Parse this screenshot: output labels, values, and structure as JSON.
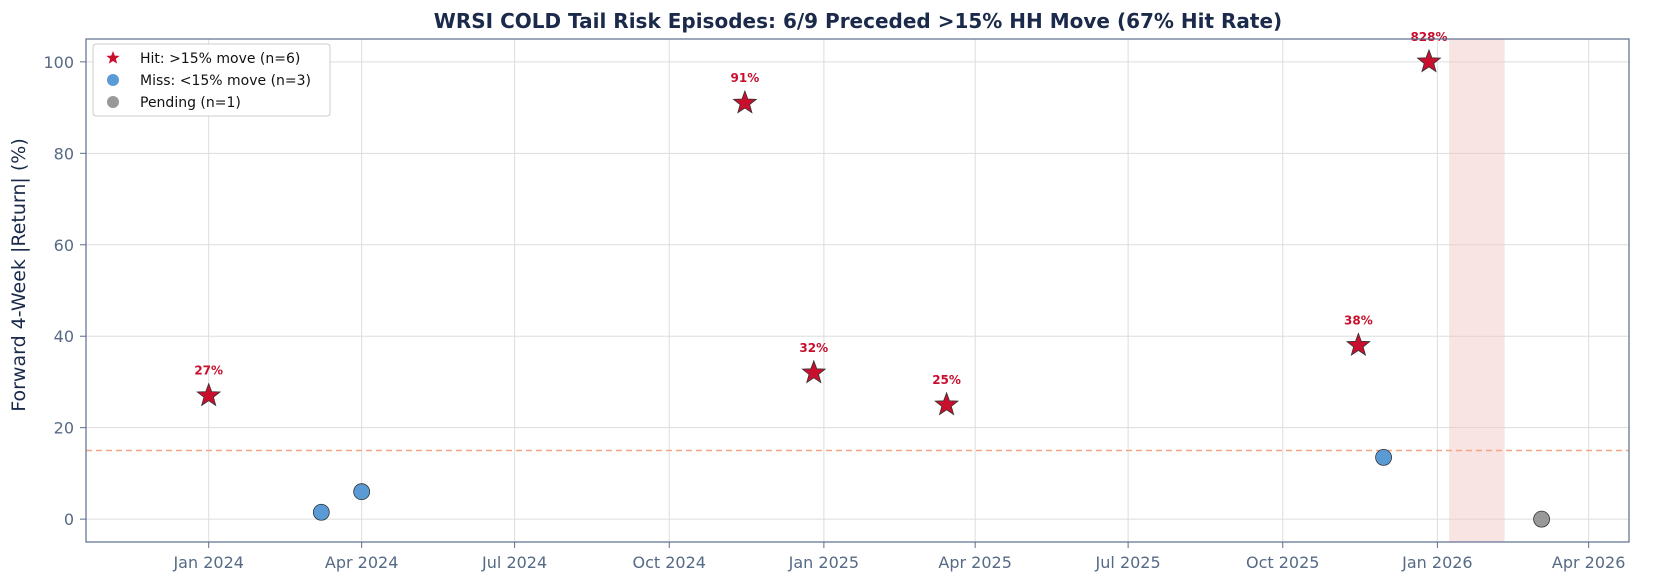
{
  "chart_data": {
    "type": "scatter",
    "title": "WRSI COLD Tail Risk Episodes: 6/9 Preceded >15% HH Move (67% Hit Rate)",
    "xlabel": "",
    "ylabel": "Forward 4-Week |Return| (%)",
    "x_axis": {
      "type": "date",
      "range": [
        "2023-10-20",
        "2026-04-25"
      ],
      "ticks": [
        {
          "date": "2024-01-01",
          "label": "Jan 2024"
        },
        {
          "date": "2024-04-01",
          "label": "Apr 2024"
        },
        {
          "date": "2024-07-01",
          "label": "Jul 2024"
        },
        {
          "date": "2024-10-01",
          "label": "Oct 2024"
        },
        {
          "date": "2025-01-01",
          "label": "Jan 2025"
        },
        {
          "date": "2025-04-01",
          "label": "Apr 2025"
        },
        {
          "date": "2025-07-01",
          "label": "Jul 2025"
        },
        {
          "date": "2025-10-01",
          "label": "Oct 2025"
        },
        {
          "date": "2026-01-01",
          "label": "Jan 2026"
        },
        {
          "date": "2026-04-01",
          "label": "Apr 2026"
        }
      ]
    },
    "y_axis": {
      "range": [
        -5,
        105
      ],
      "ticks": [
        0,
        20,
        40,
        60,
        80,
        100
      ]
    },
    "grid": true,
    "legend_position": "top-left",
    "threshold": {
      "y": 15,
      "color": "#f4a582",
      "style": "dashed"
    },
    "shaded_region": {
      "start": "2026-01-08",
      "end": "2026-02-10",
      "color": "#f2c4c4"
    },
    "series": [
      {
        "name": "Hit: >15% move (n=6)",
        "marker": "star",
        "color": "#c8102e",
        "points": [
          {
            "date": "2024-01-01",
            "value": 27,
            "label": "27%"
          },
          {
            "date": "2024-11-15",
            "value": 91,
            "label": "91%"
          },
          {
            "date": "2024-12-26",
            "value": 32,
            "label": "32%"
          },
          {
            "date": "2025-03-15",
            "value": 25,
            "label": "25%"
          },
          {
            "date": "2025-11-15",
            "value": 38,
            "label": "38%"
          },
          {
            "date": "2025-12-27",
            "value": 100,
            "label": "828%"
          }
        ]
      },
      {
        "name": "Miss: <15% move (n=3)",
        "marker": "circle",
        "color": "#5b9bd5",
        "points": [
          {
            "date": "2024-03-08",
            "value": 1.5
          },
          {
            "date": "2024-04-01",
            "value": 6
          },
          {
            "date": "2025-11-30",
            "value": 13.5
          }
        ]
      },
      {
        "name": "Pending (n=1)",
        "marker": "circle",
        "color": "#999999",
        "points": [
          {
            "date": "2026-03-04",
            "value": 0
          }
        ]
      }
    ]
  }
}
